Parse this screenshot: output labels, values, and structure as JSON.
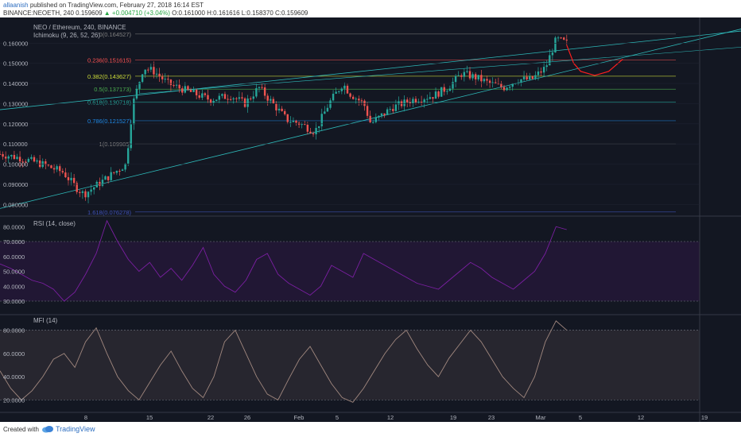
{
  "header": {
    "user": "allaanish",
    "published": "published on TradingView.com, February 27, 2018 16:14 EST",
    "symbol": "BINANCE:NEOETH, 240",
    "last": "0.159609",
    "change": "+0.004710 (+3.04%)",
    "ohlc": "O:0.161000 H:0.161616 L:0.158370 C:0.159609"
  },
  "footer": {
    "created": "Created with",
    "brand": "TradingView"
  },
  "colors": {
    "background": "#131722",
    "bull": "#26a69a",
    "bear": "#ef5350",
    "rsi": "#7b1fa2",
    "mfi": "#a1887f",
    "forecast": "#ff1e1e",
    "fib": [
      "#808080",
      "#ff5252",
      "#cddc39",
      "#4caf50",
      "#26a69a",
      "#1e88e5",
      "#808080",
      "#3f51b5"
    ]
  },
  "chart_data": {
    "type": "candlestick",
    "title": "NEO / Ethereum, 240, BINANCE",
    "indicator": "Ichimoku (9, 26, 52, 26)",
    "ylim": [
      0.075,
      0.168
    ],
    "y_ticks": [
      "0.160000",
      "0.150000",
      "0.140000",
      "0.130000",
      "0.120000",
      "0.110000",
      "0.100000",
      "0.090000",
      "0.080000"
    ],
    "x_ticks": [
      "8",
      "15",
      "22",
      "26",
      "Feb",
      "5",
      "12",
      "19",
      "23",
      "Mar",
      "5",
      "12",
      "19"
    ],
    "fib_levels": [
      {
        "ratio": "0",
        "price": "0.164527"
      },
      {
        "ratio": "0.236",
        "price": "0.151615"
      },
      {
        "ratio": "0.382",
        "price": "0.143627"
      },
      {
        "ratio": "0.5",
        "price": "0.137173"
      },
      {
        "ratio": "0.618",
        "price": "0.130718"
      },
      {
        "ratio": "0.786",
        "price": "0.121527"
      },
      {
        "ratio": "1",
        "price": "0.109985"
      },
      {
        "ratio": "1.618",
        "price": "0.076278"
      }
    ],
    "price_path": [
      [
        0,
        0.105
      ],
      [
        0.03,
        0.103
      ],
      [
        0.06,
        0.1
      ],
      [
        0.09,
        0.096
      ],
      [
        0.11,
        0.088
      ],
      [
        0.12,
        0.085
      ],
      [
        0.14,
        0.09
      ],
      [
        0.16,
        0.095
      ],
      [
        0.18,
        0.1
      ],
      [
        0.19,
        0.13
      ],
      [
        0.205,
        0.148
      ],
      [
        0.22,
        0.146
      ],
      [
        0.24,
        0.14
      ],
      [
        0.27,
        0.136
      ],
      [
        0.3,
        0.132
      ],
      [
        0.33,
        0.134
      ],
      [
        0.35,
        0.13
      ],
      [
        0.37,
        0.138
      ],
      [
        0.39,
        0.13
      ],
      [
        0.41,
        0.122
      ],
      [
        0.43,
        0.12
      ],
      [
        0.45,
        0.116
      ],
      [
        0.47,
        0.13
      ],
      [
        0.49,
        0.14
      ],
      [
        0.5,
        0.135
      ],
      [
        0.52,
        0.13
      ],
      [
        0.53,
        0.12
      ],
      [
        0.56,
        0.128
      ],
      [
        0.59,
        0.132
      ],
      [
        0.62,
        0.134
      ],
      [
        0.64,
        0.138
      ],
      [
        0.66,
        0.145
      ],
      [
        0.68,
        0.143
      ],
      [
        0.7,
        0.14
      ],
      [
        0.72,
        0.138
      ],
      [
        0.74,
        0.142
      ],
      [
        0.76,
        0.142
      ],
      [
        0.78,
        0.148
      ],
      [
        0.795,
        0.162
      ],
      [
        0.81,
        0.16
      ]
    ],
    "forecast_path": [
      [
        0.81,
        0.159
      ],
      [
        0.82,
        0.15
      ],
      [
        0.83,
        0.146
      ],
      [
        0.85,
        0.144
      ],
      [
        0.87,
        0.146
      ],
      [
        0.89,
        0.152
      ]
    ],
    "rsi": {
      "label": "RSI (14, close)",
      "ylim": [
        22,
        86
      ],
      "y_ticks": [
        "80.0000",
        "70.0000",
        "60.0000",
        "50.0000",
        "40.0000",
        "30.0000"
      ],
      "bands": [
        30,
        70
      ],
      "values": [
        55,
        52,
        48,
        44,
        42,
        38,
        30,
        36,
        48,
        62,
        84,
        70,
        58,
        50,
        56,
        46,
        52,
        44,
        54,
        66,
        48,
        40,
        36,
        44,
        58,
        62,
        48,
        42,
        38,
        34,
        40,
        54,
        50,
        46,
        62,
        58,
        54,
        50,
        46,
        42,
        40,
        38,
        44,
        50,
        56,
        52,
        46,
        42,
        38,
        44,
        50,
        62,
        80,
        78
      ]
    },
    "mfi": {
      "label": "MFI (14)",
      "ylim": [
        10,
        92
      ],
      "y_ticks": [
        "80.0000",
        "60.0000",
        "40.0000",
        "20.0000"
      ],
      "bands": [
        20,
        80
      ],
      "values": [
        45,
        30,
        20,
        28,
        40,
        55,
        60,
        48,
        70,
        82,
        60,
        40,
        28,
        20,
        35,
        50,
        62,
        45,
        30,
        22,
        40,
        70,
        80,
        60,
        40,
        25,
        20,
        38,
        55,
        66,
        50,
        34,
        22,
        18,
        30,
        45,
        60,
        72,
        80,
        64,
        50,
        40,
        56,
        68,
        80,
        70,
        55,
        40,
        30,
        22,
        40,
        70,
        88,
        80
      ]
    }
  }
}
